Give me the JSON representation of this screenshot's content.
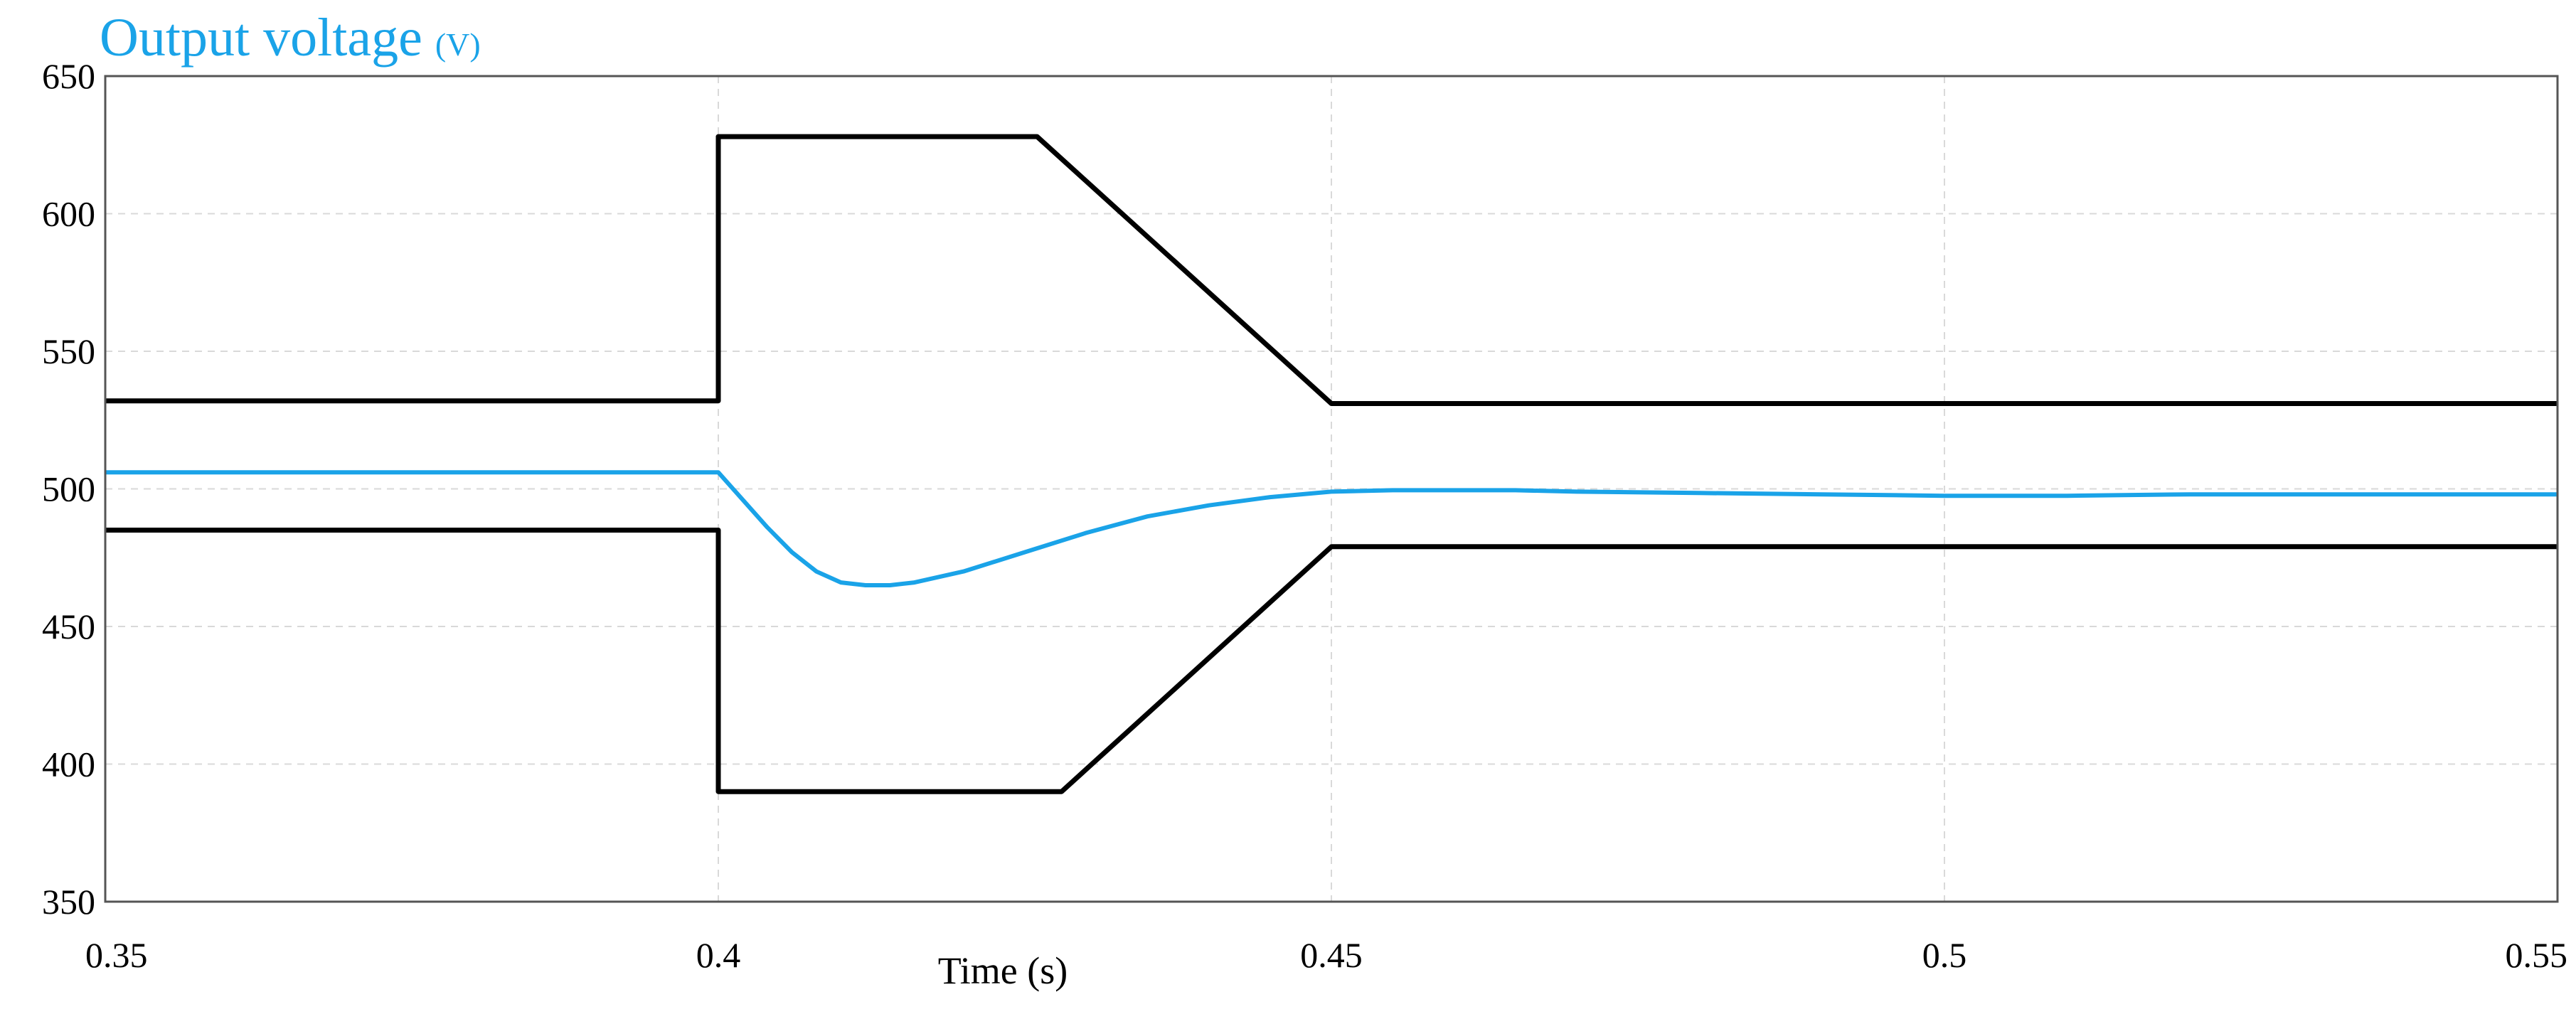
{
  "chart_data": {
    "type": "line",
    "title": "Output voltage",
    "title_unit": "(V)",
    "xlabel": "Time (s)",
    "ylabel": "",
    "xlim": [
      0.35,
      0.55
    ],
    "ylim": [
      350,
      650
    ],
    "x_ticks": [
      0.35,
      0.4,
      0.45,
      0.5,
      0.55
    ],
    "x_tick_labels": [
      "0.35",
      "0.4",
      "0.45",
      "0.5",
      "0.55"
    ],
    "y_ticks": [
      350,
      400,
      450,
      500,
      550,
      600,
      650
    ],
    "y_tick_labels": [
      "350",
      "400",
      "450",
      "500",
      "550",
      "600",
      "650"
    ],
    "grid": true,
    "legend": "none",
    "colors": {
      "title": "#1aa3e8",
      "output": "#1aa3e8",
      "bounds": "#000000"
    },
    "series": [
      {
        "role": "upper-bound",
        "color": "#000000",
        "x": [
          0.35,
          0.4,
          0.4,
          0.426,
          0.45,
          0.55
        ],
        "y": [
          532,
          532,
          628,
          628,
          531,
          531
        ]
      },
      {
        "role": "lower-bound",
        "color": "#000000",
        "x": [
          0.35,
          0.4,
          0.4,
          0.428,
          0.45,
          0.55
        ],
        "y": [
          485,
          485,
          390,
          390,
          479,
          479
        ]
      },
      {
        "role": "output",
        "color": "#1aa3e8",
        "x": [
          0.35,
          0.4,
          0.402,
          0.404,
          0.406,
          0.408,
          0.41,
          0.412,
          0.414,
          0.416,
          0.418,
          0.42,
          0.425,
          0.43,
          0.435,
          0.44,
          0.445,
          0.45,
          0.455,
          0.46,
          0.465,
          0.47,
          0.48,
          0.49,
          0.5,
          0.51,
          0.52,
          0.53,
          0.54,
          0.55
        ],
        "y": [
          506,
          506,
          496,
          486,
          477,
          470,
          466,
          465,
          465,
          466,
          468,
          470,
          477,
          484,
          490,
          494,
          497,
          499,
          499.5,
          499.5,
          499.5,
          499,
          498.5,
          498,
          497.5,
          497.5,
          498,
          498,
          498,
          498
        ]
      }
    ]
  }
}
